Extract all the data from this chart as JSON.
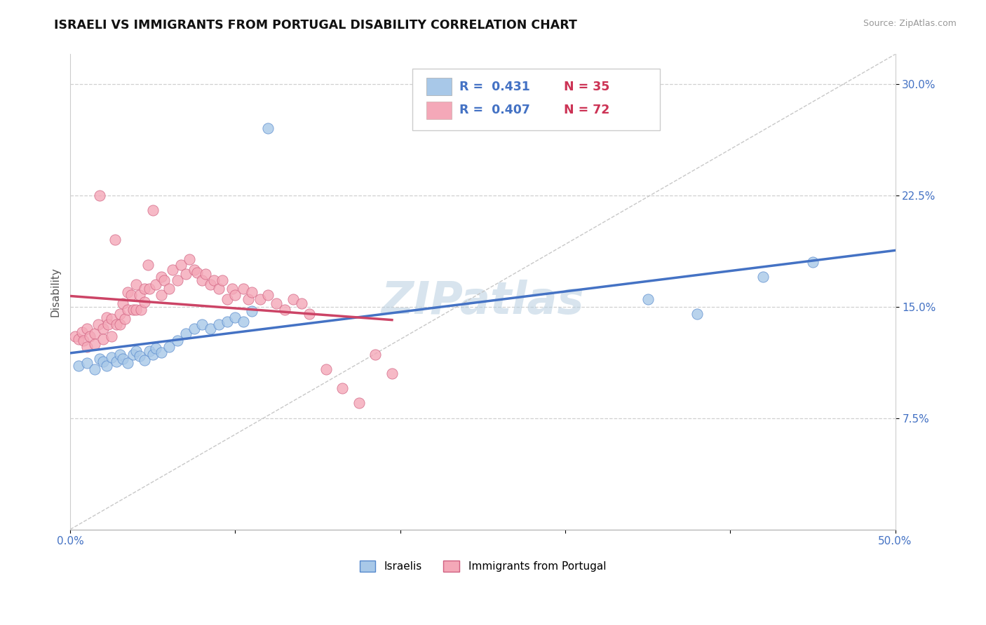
{
  "title": "ISRAELI VS IMMIGRANTS FROM PORTUGAL DISABILITY CORRELATION CHART",
  "source": "Source: ZipAtlas.com",
  "ylabel": "Disability",
  "xlim": [
    0.0,
    0.5
  ],
  "ylim": [
    0.0,
    0.32
  ],
  "xticks": [
    0.0,
    0.1,
    0.2,
    0.3,
    0.4,
    0.5
  ],
  "xtick_labels": [
    "0.0%",
    "",
    "",
    "",
    "",
    "50.0%"
  ],
  "yticks": [
    0.075,
    0.15,
    0.225,
    0.3
  ],
  "ytick_labels": [
    "7.5%",
    "15.0%",
    "22.5%",
    "30.0%"
  ],
  "grid_color": "#d0d0d0",
  "background_color": "#ffffff",
  "israeli_fill": "#a8c8e8",
  "portugal_fill": "#f4a8b8",
  "israeli_edge": "#5588cc",
  "portugal_edge": "#d06080",
  "israeli_line": "#4472c4",
  "portugal_line": "#cc4466",
  "diagonal_color": "#c8c8c8",
  "watermark": "ZIPatlas",
  "israeli_x": [
    0.005,
    0.01,
    0.015,
    0.018,
    0.02,
    0.022,
    0.025,
    0.028,
    0.03,
    0.032,
    0.035,
    0.038,
    0.04,
    0.042,
    0.045,
    0.048,
    0.05,
    0.052,
    0.055,
    0.06,
    0.065,
    0.07,
    0.075,
    0.08,
    0.085,
    0.09,
    0.095,
    0.1,
    0.105,
    0.11,
    0.12,
    0.35,
    0.38,
    0.42,
    0.45
  ],
  "israeli_y": [
    0.11,
    0.112,
    0.108,
    0.115,
    0.113,
    0.11,
    0.116,
    0.113,
    0.118,
    0.115,
    0.112,
    0.118,
    0.12,
    0.117,
    0.114,
    0.12,
    0.118,
    0.122,
    0.119,
    0.123,
    0.127,
    0.132,
    0.135,
    0.138,
    0.135,
    0.138,
    0.14,
    0.143,
    0.14,
    0.147,
    0.27,
    0.155,
    0.145,
    0.17,
    0.18
  ],
  "portugal_x": [
    0.003,
    0.005,
    0.007,
    0.008,
    0.01,
    0.01,
    0.012,
    0.015,
    0.015,
    0.017,
    0.018,
    0.02,
    0.02,
    0.022,
    0.023,
    0.025,
    0.025,
    0.027,
    0.028,
    0.03,
    0.03,
    0.032,
    0.033,
    0.035,
    0.035,
    0.037,
    0.038,
    0.04,
    0.04,
    0.042,
    0.043,
    0.045,
    0.045,
    0.047,
    0.048,
    0.05,
    0.052,
    0.055,
    0.055,
    0.057,
    0.06,
    0.062,
    0.065,
    0.067,
    0.07,
    0.072,
    0.075,
    0.077,
    0.08,
    0.082,
    0.085,
    0.087,
    0.09,
    0.092,
    0.095,
    0.098,
    0.1,
    0.105,
    0.108,
    0.11,
    0.115,
    0.12,
    0.125,
    0.13,
    0.135,
    0.14,
    0.145,
    0.155,
    0.165,
    0.175,
    0.185,
    0.195
  ],
  "portugal_y": [
    0.13,
    0.128,
    0.133,
    0.127,
    0.135,
    0.123,
    0.13,
    0.132,
    0.125,
    0.138,
    0.225,
    0.135,
    0.128,
    0.143,
    0.138,
    0.142,
    0.13,
    0.195,
    0.138,
    0.145,
    0.138,
    0.152,
    0.142,
    0.16,
    0.148,
    0.158,
    0.148,
    0.165,
    0.148,
    0.158,
    0.148,
    0.162,
    0.153,
    0.178,
    0.162,
    0.215,
    0.165,
    0.17,
    0.158,
    0.168,
    0.162,
    0.175,
    0.168,
    0.178,
    0.172,
    0.182,
    0.175,
    0.173,
    0.168,
    0.172,
    0.165,
    0.168,
    0.162,
    0.168,
    0.155,
    0.162,
    0.158,
    0.162,
    0.155,
    0.16,
    0.155,
    0.158,
    0.152,
    0.148,
    0.155,
    0.152,
    0.145,
    0.108,
    0.095,
    0.085,
    0.118,
    0.105
  ]
}
